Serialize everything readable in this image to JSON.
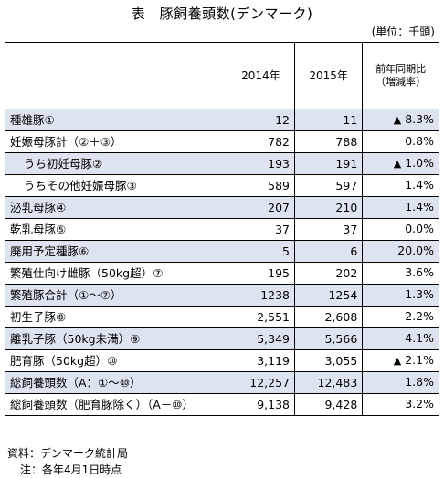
{
  "title": "表　豚飼養頭数(デンマーク)",
  "unit": "(単位：千頭)",
  "headers": {
    "blank": "",
    "y2014": "2014年",
    "y2015": "2015年",
    "yoy_line1": "前年同期比",
    "yoy_line2": "（増減率）"
  },
  "rows": [
    {
      "label": "種雄豚①",
      "y2014": "12",
      "y2015": "11",
      "mark": "▲",
      "yoy": "8.3%"
    },
    {
      "label": "妊娠母豚計（②＋③）",
      "y2014": "782",
      "y2015": "788",
      "mark": "",
      "yoy": "0.8%"
    },
    {
      "label": "うち初妊母豚②",
      "y2014": "193",
      "y2015": "191",
      "mark": "▲",
      "yoy": "1.0%"
    },
    {
      "label": "うちその他妊娠母豚③",
      "y2014": "589",
      "y2015": "597",
      "mark": "",
      "yoy": "1.4%"
    },
    {
      "label": "泌乳母豚④",
      "y2014": "207",
      "y2015": "210",
      "mark": "",
      "yoy": "1.4%"
    },
    {
      "label": "乾乳母豚⑤",
      "y2014": "37",
      "y2015": "37",
      "mark": "",
      "yoy": "0.0%"
    },
    {
      "label": "廃用予定種豚⑥",
      "y2014": "5",
      "y2015": "6",
      "mark": "",
      "yoy": "20.0%"
    },
    {
      "label": "繁殖仕向け雌豚（50kg超）⑦",
      "y2014": "195",
      "y2015": "202",
      "mark": "",
      "yoy": "3.6%"
    },
    {
      "label": "繁殖豚合計（①～⑦）",
      "y2014": "1238",
      "y2015": "1254",
      "mark": "",
      "yoy": "1.3%"
    },
    {
      "label": "初生子豚⑧",
      "y2014": "2,551",
      "y2015": "2,608",
      "mark": "",
      "yoy": "2.2%"
    },
    {
      "label": "離乳子豚（50kg未満）⑨",
      "y2014": "5,349",
      "y2015": "5,566",
      "mark": "",
      "yoy": "4.1%"
    },
    {
      "label": "肥育豚（50kg超）⑩",
      "y2014": "3,119",
      "y2015": "3,055",
      "mark": "▲",
      "yoy": "2.1%"
    },
    {
      "label": "総飼養頭数（A：①～⑩）",
      "y2014": "12,257",
      "y2015": "12,483",
      "mark": "",
      "yoy": "1.8%"
    },
    {
      "label": "総飼養頭数（肥育豚除く）（A－⑩）",
      "y2014": "9,138",
      "y2015": "9,428",
      "mark": "",
      "yoy": "3.2%"
    }
  ],
  "footnotes": {
    "source": "資料：デンマーク統計局",
    "note": "注：各年4月1日時点"
  },
  "colors": {
    "shaded_row": "#dde3ef"
  }
}
